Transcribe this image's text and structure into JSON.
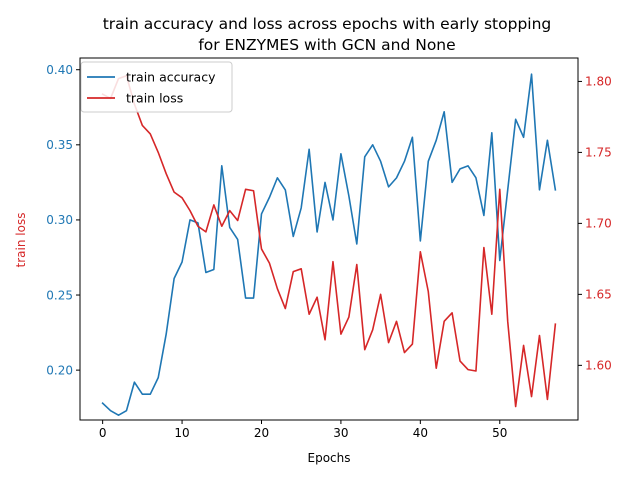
{
  "chart_data": {
    "type": "line",
    "title_line1": "train accuracy and loss across epochs with early stopping",
    "title_line2": "for ENZYMES with GCN and None",
    "xlabel": "Epochs",
    "ylabel_left": "train loss",
    "xlim": [
      -2.85,
      59.85
    ],
    "ylim_left": [
      0.1668,
      0.4078
    ],
    "ylim_right": [
      1.5615,
      1.8165
    ],
    "x_ticks": [
      0,
      10,
      20,
      30,
      40,
      50
    ],
    "y_ticks_left": [
      0.2,
      0.25,
      0.3,
      0.35,
      0.4
    ],
    "y_ticks_left_labels": [
      "0.20",
      "0.25",
      "0.30",
      "0.35",
      "0.40"
    ],
    "y_ticks_right": [
      1.6,
      1.65,
      1.7,
      1.75,
      1.8
    ],
    "y_ticks_right_labels": [
      "1.60",
      "1.65",
      "1.70",
      "1.75",
      "1.80"
    ],
    "legend_position": "upper-left",
    "colors": {
      "accuracy": "#1f77b4",
      "loss": "#d62728",
      "axes": "#000000"
    },
    "x": [
      0,
      1,
      2,
      3,
      4,
      5,
      6,
      7,
      8,
      9,
      10,
      11,
      12,
      13,
      14,
      15,
      16,
      17,
      18,
      19,
      20,
      21,
      22,
      23,
      24,
      25,
      26,
      27,
      28,
      29,
      30,
      31,
      32,
      33,
      34,
      35,
      36,
      37,
      38,
      39,
      40,
      41,
      42,
      43,
      44,
      45,
      46,
      47,
      48,
      49,
      50,
      51,
      52,
      53,
      54,
      55,
      56,
      57
    ],
    "series": [
      {
        "name": "train accuracy",
        "axis": "left",
        "values": [
          0.178,
          0.173,
          0.17,
          0.173,
          0.192,
          0.184,
          0.184,
          0.195,
          0.224,
          0.261,
          0.272,
          0.3,
          0.298,
          0.265,
          0.267,
          0.336,
          0.295,
          0.287,
          0.248,
          0.248,
          0.304,
          0.315,
          0.328,
          0.32,
          0.289,
          0.308,
          0.347,
          0.292,
          0.325,
          0.3,
          0.344,
          0.316,
          0.284,
          0.342,
          0.35,
          0.339,
          0.322,
          0.328,
          0.339,
          0.355,
          0.286,
          0.339,
          0.353,
          0.372,
          0.325,
          0.334,
          0.336,
          0.328,
          0.303,
          0.358,
          0.273,
          0.32,
          0.367,
          0.355,
          0.397,
          0.32,
          0.353,
          0.32
        ]
      },
      {
        "name": "train loss",
        "axis": "right",
        "values": [
          1.791,
          1.788,
          1.802,
          1.804,
          1.784,
          1.769,
          1.763,
          1.75,
          1.735,
          1.722,
          1.718,
          1.709,
          1.698,
          1.694,
          1.713,
          1.698,
          1.709,
          1.702,
          1.724,
          1.723,
          1.682,
          1.672,
          1.654,
          1.64,
          1.666,
          1.668,
          1.636,
          1.648,
          1.618,
          1.673,
          1.622,
          1.634,
          1.671,
          1.611,
          1.625,
          1.65,
          1.616,
          1.631,
          1.609,
          1.615,
          1.68,
          1.652,
          1.598,
          1.631,
          1.637,
          1.603,
          1.597,
          1.596,
          1.683,
          1.636,
          1.724,
          1.631,
          1.571,
          1.614,
          1.578,
          1.621,
          1.576,
          1.629
        ]
      }
    ]
  }
}
